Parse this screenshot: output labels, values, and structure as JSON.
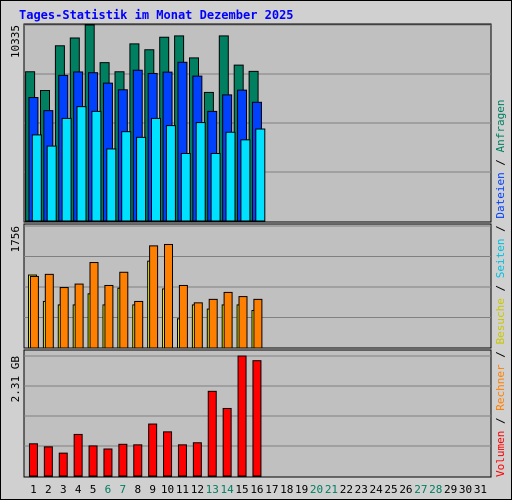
{
  "chart_data": {
    "type": "bar",
    "title": "Tages-Statistik im Monat Dezember 2025",
    "categories": [
      "1",
      "2",
      "3",
      "4",
      "5",
      "6",
      "7",
      "8",
      "9",
      "10",
      "11",
      "12",
      "13",
      "14",
      "15",
      "16",
      "17",
      "18",
      "19",
      "20",
      "21",
      "22",
      "23",
      "24",
      "25",
      "26",
      "27",
      "28",
      "29",
      "30",
      "31"
    ],
    "weekend_days": [
      "6",
      "7",
      "13",
      "14",
      "20",
      "21",
      "27",
      "28"
    ],
    "panels": [
      {
        "id": "top",
        "ymax": 10335,
        "ymax_label": "10335",
        "series": [
          {
            "name": "Anfragen",
            "color": "#008060",
            "values": [
              7870,
              6880,
              9240,
              9650,
              10335,
              8350,
              7870,
              9340,
              9030,
              9690,
              9760,
              8600,
              6780,
              9760,
              8220,
              7890
            ]
          },
          {
            "name": "Dateien",
            "color": "#0040ff",
            "values": [
              6510,
              5820,
              7680,
              7860,
              7820,
              7270,
              6920,
              7950,
              7780,
              7850,
              8370,
              7640,
              5780,
              6650,
              6900,
              6260
            ]
          },
          {
            "name": "Seiten",
            "color": "#00e0ff",
            "values": [
              4540,
              3950,
              5410,
              6030,
              5780,
              3800,
              4710,
              4410,
              5410,
              5030,
              3560,
              5190,
              3560,
              4680,
              4280,
              4850
            ]
          }
        ]
      },
      {
        "id": "mid",
        "ymax": 1756,
        "ymax_label": "1756",
        "series": [
          {
            "name": "Besuche",
            "color": "#ffff00",
            "values": [
              1050,
              670,
              620,
              620,
              780,
              620,
              860,
              620,
              1250,
              850,
              420,
              620,
              560,
              620,
              620,
              540
            ]
          },
          {
            "name": "Rechner",
            "color": "#ff8000",
            "values": [
              1030,
              1060,
              870,
              920,
              1230,
              900,
              1090,
              670,
              1470,
              1490,
              900,
              650,
              700,
              800,
              740,
              700
            ]
          }
        ]
      },
      {
        "id": "bot",
        "ymax": 2.31,
        "ymax_label": "2.31 GB",
        "series": [
          {
            "name": "Volumen",
            "color": "#ff0000",
            "values": [
              0.62,
              0.56,
              0.44,
              0.8,
              0.58,
              0.52,
              0.61,
              0.6,
              1.0,
              0.85,
              0.6,
              0.64,
              1.63,
              1.3,
              2.31,
              2.22
            ]
          }
        ]
      }
    ],
    "legend": {
      "placement": "right-vertical",
      "separator": " / ",
      "items": [
        {
          "name": "Volumen",
          "color": "#ff0000"
        },
        {
          "name": "Rechner",
          "color": "#ff8000"
        },
        {
          "name": "Besuche",
          "color": "#c8c800"
        },
        {
          "name": "Seiten",
          "color": "#00c0e0"
        },
        {
          "name": "Dateien",
          "color": "#0040ff"
        },
        {
          "name": "Anfragen",
          "color": "#008060"
        }
      ]
    },
    "colors": {
      "title": "#0000ff",
      "weekday_label": "#000000",
      "weekend_label": "#008060",
      "plot_bg": "#c0c0c0",
      "outer_bg": "#d0d0d0",
      "grid": "#808080"
    }
  }
}
